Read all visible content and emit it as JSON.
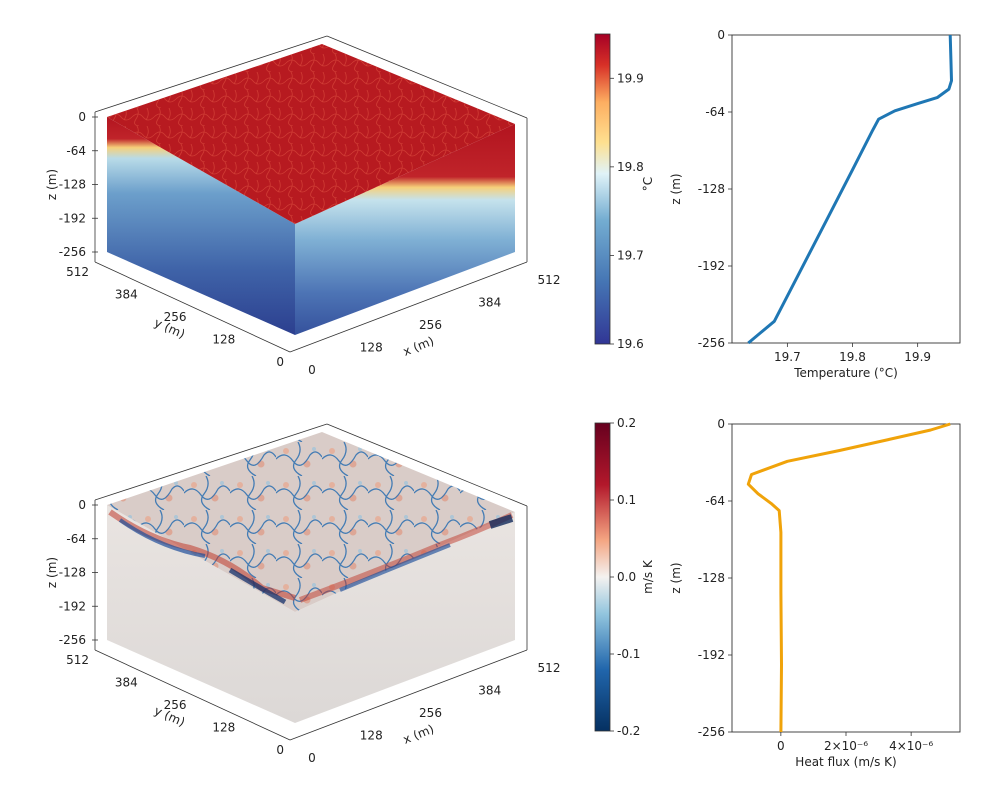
{
  "chart_data": [
    {
      "type": "heatmap",
      "panel": "top-3d-temperature",
      "z_axis": {
        "label": "z (m)",
        "ticks": [
          "0",
          "-64",
          "-128",
          "-192",
          "-256"
        ]
      },
      "y_axis": {
        "label": "y (m)",
        "ticks": [
          "512",
          "384",
          "256",
          "128",
          "0"
        ]
      },
      "x_axis": {
        "label": "x (m)",
        "ticks": [
          "0",
          "128",
          "256",
          "384",
          "512"
        ]
      },
      "colorbar": {
        "label": "°C",
        "range": [
          19.6,
          19.95
        ],
        "ticks": [
          "19.9",
          "19.8",
          "19.7",
          "19.6"
        ],
        "colormap": "RdYlBu_r"
      }
    },
    {
      "type": "line",
      "panel": "top-temperature-profile",
      "xlabel": "Temperature (°C)",
      "ylabel": "z (m)",
      "xlim": [
        19.615,
        19.965
      ],
      "ylim": [
        -256,
        0
      ],
      "xticks": [
        "19.7",
        "19.8",
        "19.9"
      ],
      "yticks": [
        "0",
        "-64",
        "-128",
        "-192",
        "-256"
      ],
      "series": [
        {
          "color": "#1f77b4",
          "x": [
            19.95,
            19.951,
            19.952,
            19.948,
            19.93,
            19.9,
            19.865,
            19.84,
            19.83,
            19.8,
            19.76,
            19.72,
            19.68,
            19.64
          ],
          "y": [
            0,
            -20,
            -38,
            -45,
            -52,
            -57,
            -63,
            -70,
            -80,
            -112,
            -154,
            -196,
            -238,
            -256
          ]
        }
      ]
    },
    {
      "type": "heatmap",
      "panel": "bottom-3d-heat-flux",
      "z_axis": {
        "label": "z (m)",
        "ticks": [
          "0",
          "-64",
          "-128",
          "-192",
          "-256"
        ]
      },
      "y_axis": {
        "label": "y (m)",
        "ticks": [
          "512",
          "384",
          "256",
          "128",
          "0"
        ]
      },
      "x_axis": {
        "label": "x (m)",
        "ticks": [
          "0",
          "128",
          "256",
          "384",
          "512"
        ]
      },
      "colorbar": {
        "label": "m/s K",
        "range": [
          -0.2,
          0.2
        ],
        "ticks": [
          "0.2",
          "0.1",
          "0.0",
          "-0.1",
          "-0.2"
        ],
        "colormap": "RdBu_r"
      }
    },
    {
      "type": "line",
      "panel": "bottom-heat-flux-profile",
      "xlabel": "Heat flux (m/s K)",
      "ylabel": "z (m)",
      "xlim": [
        -1.5e-06,
        5.5e-06
      ],
      "ylim": [
        -256,
        0
      ],
      "xticks": [
        "0",
        "2×10⁻⁶",
        "4×10⁻⁶"
      ],
      "yticks": [
        "0",
        "-64",
        "-128",
        "-192",
        "-256"
      ],
      "series": [
        {
          "color": "#f0a30a",
          "x": [
            5.2e-06,
            4.6e-06,
            3.3e-06,
            1.8e-06,
            2e-07,
            -9e-07,
            -1e-06,
            -7e-07,
            -3e-07,
            -5e-08,
            0.0,
            0.0,
            2e-08,
            0.0
          ],
          "y": [
            0,
            -5,
            -13,
            -22,
            -31,
            -42,
            -50,
            -58,
            -66,
            -72,
            -90,
            -140,
            -200,
            -256
          ]
        }
      ]
    }
  ]
}
